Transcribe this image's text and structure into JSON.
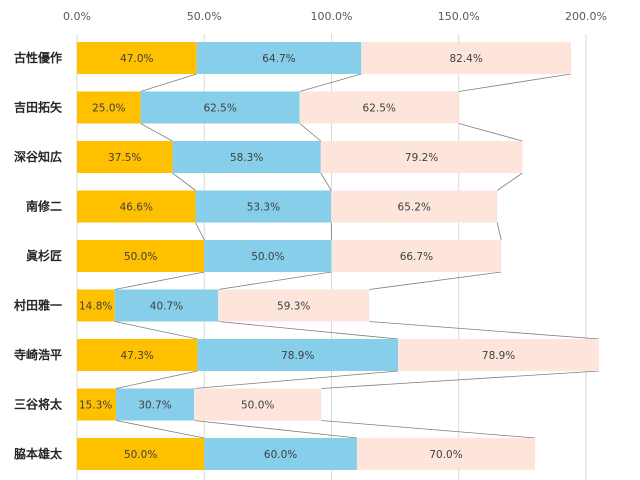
{
  "chart_data": {
    "type": "bar",
    "orientation": "horizontal",
    "stacked": true,
    "categories": [
      "古性優作",
      "吉田拓矢",
      "深谷知広",
      "南修二",
      "眞杉匠",
      "村田雅一",
      "寺崎浩平",
      "三谷将太",
      "脇本雄太"
    ],
    "series": [
      {
        "color": "#ffc000",
        "values": [
          47.0,
          25.0,
          37.5,
          46.6,
          50.0,
          14.8,
          47.3,
          15.3,
          50.0
        ],
        "labels": [
          "47.0%",
          "25.0%",
          "37.5%",
          "46.6%",
          "50.0%",
          "14.8%",
          "47.3%",
          "15.3%",
          "50.0%"
        ]
      },
      {
        "color": "#87ceeb",
        "values": [
          64.7,
          62.5,
          58.3,
          53.3,
          50.0,
          40.7,
          78.9,
          30.7,
          60.0
        ],
        "labels": [
          "64.7%",
          "62.5%",
          "58.3%",
          "53.3%",
          "50.0%",
          "40.7%",
          "78.9%",
          "30.7%",
          "60.0%"
        ]
      },
      {
        "color": "#fde5dc",
        "values": [
          82.4,
          62.5,
          79.2,
          65.2,
          66.7,
          59.3,
          78.9,
          50.0,
          70.0
        ],
        "labels": [
          "82.4%",
          "62.5%",
          "79.2%",
          "65.2%",
          "66.7%",
          "59.3%",
          "78.9%",
          "50.0%",
          "70.0%"
        ]
      }
    ],
    "xaxis": {
      "ticks": [
        0,
        50,
        100,
        150,
        200
      ],
      "tick_labels": [
        "0.0%",
        "50.0%",
        "100.0%",
        "150.0%",
        "200.0%"
      ],
      "position": "top",
      "xlim": [
        0,
        220
      ]
    },
    "grid": true,
    "series_lines": true,
    "gridline_color": "#d9d9d9",
    "series_line_color": "#7f7f7f"
  }
}
